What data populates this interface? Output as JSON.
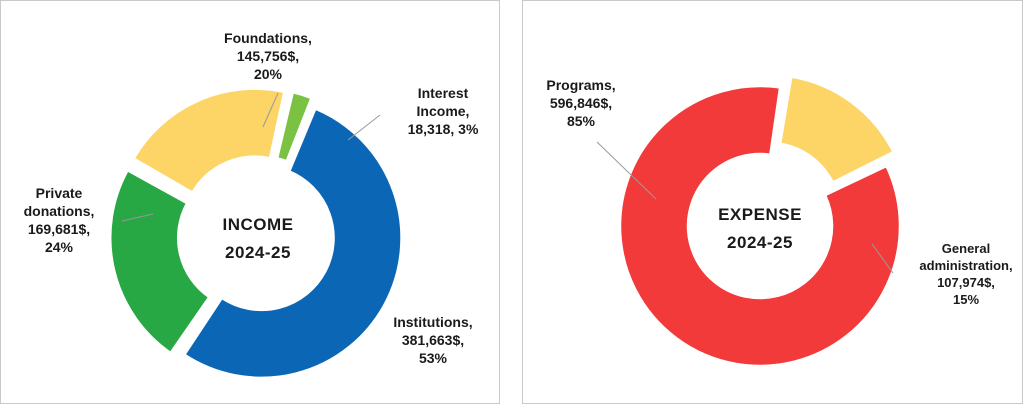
{
  "colors": {
    "blue": "#0b67b6",
    "green": "#28a745",
    "yellow": "#fcd566",
    "light_green": "#7cc242",
    "red": "#f23a3a"
  },
  "chart_data": [
    {
      "type": "donut",
      "center_label": [
        "INCOME",
        "2024-25"
      ],
      "series": [
        {
          "name": "Institutions",
          "value": 381663,
          "percent": 53,
          "label": [
            "Institutions,",
            "381,663$,",
            "53%"
          ],
          "color": "#0b67b6"
        },
        {
          "name": "Private donations",
          "value": 169681,
          "percent": 24,
          "label": [
            "Private",
            "donations,",
            "169,681$,",
            "24%"
          ],
          "color": "#28a745"
        },
        {
          "name": "Foundations",
          "value": 145756,
          "percent": 20,
          "label": [
            "Foundations,",
            "145,756$,",
            "20%"
          ],
          "color": "#fcd566"
        },
        {
          "name": "Interest Income",
          "value": 18318,
          "percent": 3,
          "label": [
            "Interest",
            "Income,",
            "18,318, 3%"
          ],
          "color": "#7cc242"
        }
      ]
    },
    {
      "type": "donut",
      "center_label": [
        "EXPENSE",
        "2024-25"
      ],
      "series": [
        {
          "name": "Programs",
          "value": 596846,
          "percent": 85,
          "label": [
            "Programs,",
            "596,846$,",
            "85%"
          ],
          "color": "#f23a3a"
        },
        {
          "name": "General administration",
          "value": 107974,
          "percent": 15,
          "label": [
            "General",
            "administration,",
            "107,974$,",
            "15%"
          ],
          "color": "#fcd566"
        }
      ]
    }
  ]
}
